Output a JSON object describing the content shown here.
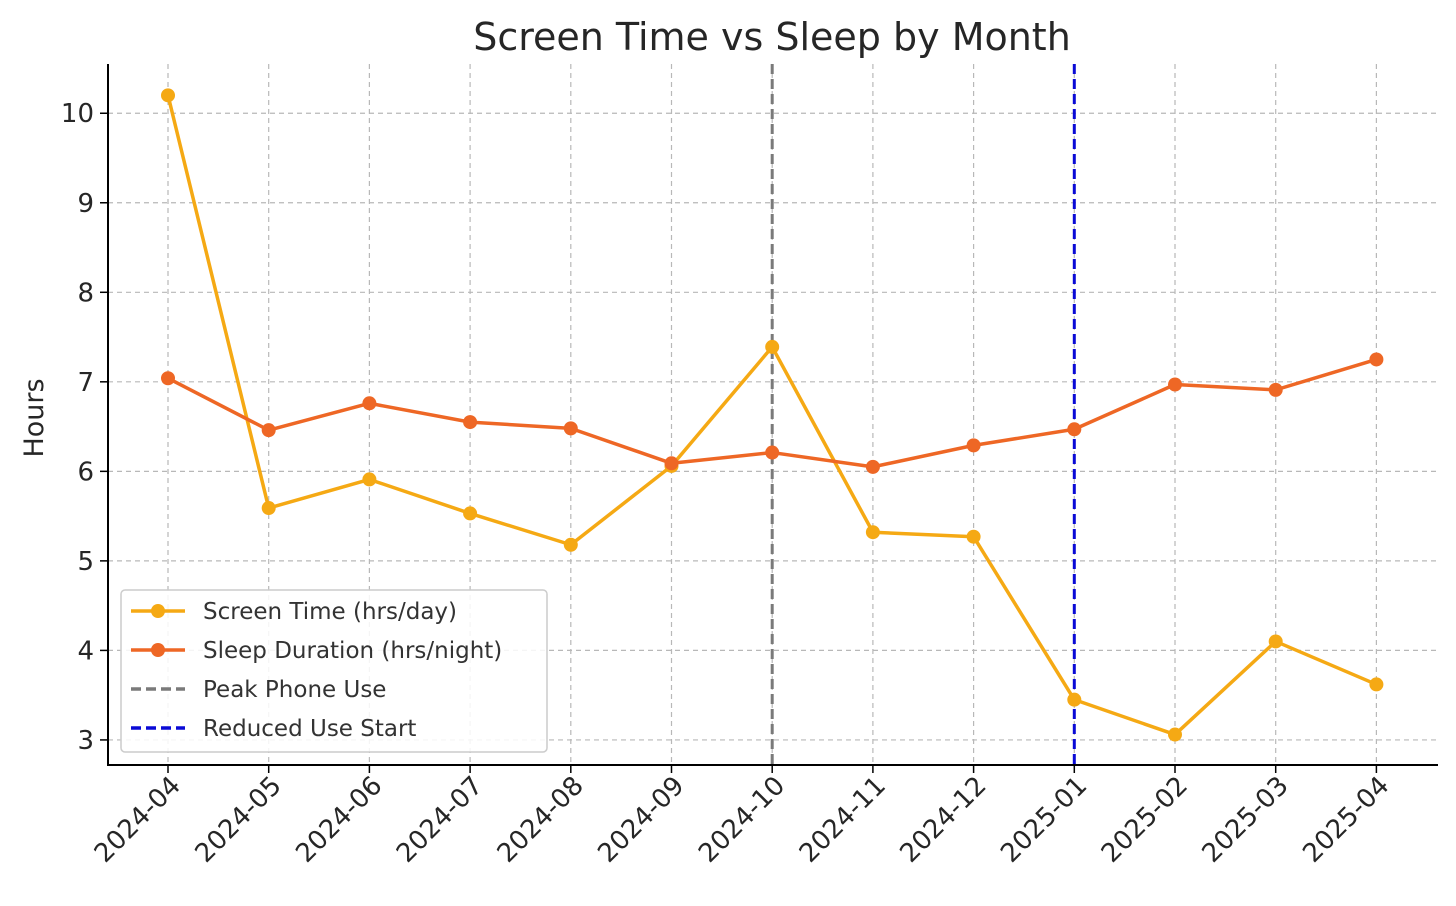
{
  "chart_data": {
    "type": "line",
    "title": "Screen Time vs Sleep by Month",
    "xlabel": "",
    "ylabel": "Hours",
    "categories": [
      "2024-04",
      "2024-05",
      "2024-06",
      "2024-07",
      "2024-08",
      "2024-09",
      "2024-10",
      "2024-11",
      "2024-12",
      "2025-01",
      "2025-02",
      "2025-03",
      "2025-04"
    ],
    "ylim": [
      2.72,
      10.55
    ],
    "yticks": [
      3,
      4,
      5,
      6,
      7,
      8,
      9,
      10
    ],
    "grid": true,
    "legend_position": "lower-left",
    "series": [
      {
        "name": "Screen Time (hrs/day)",
        "color": "#f5a914",
        "values": [
          10.2,
          5.59,
          5.91,
          5.53,
          5.18,
          6.06,
          7.39,
          5.32,
          5.27,
          3.45,
          3.06,
          4.1,
          3.62
        ]
      },
      {
        "name": "Sleep Duration (hrs/night)",
        "color": "#ee6725",
        "values": [
          7.04,
          6.46,
          6.76,
          6.55,
          6.48,
          6.09,
          6.21,
          6.05,
          6.29,
          6.47,
          6.97,
          6.91,
          7.25
        ]
      }
    ],
    "vlines": [
      {
        "name": "Peak Phone Use",
        "x": "2024-10",
        "color": "#7a7a7a"
      },
      {
        "name": "Reduced Use Start",
        "x": "2025-01",
        "color": "#0a0ad6"
      }
    ]
  }
}
